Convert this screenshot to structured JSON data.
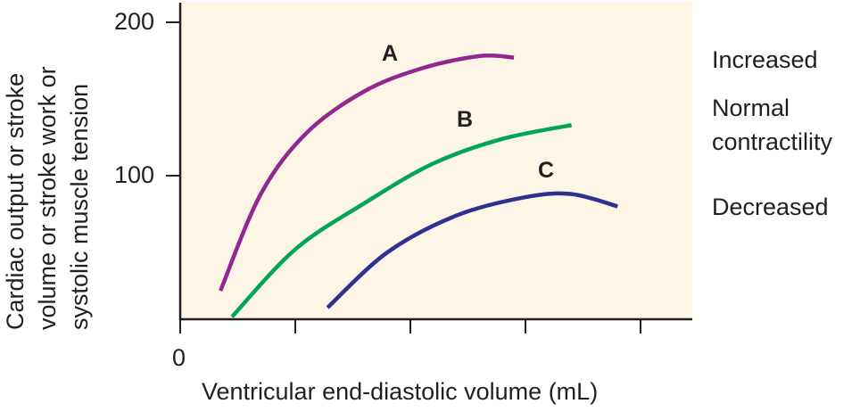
{
  "chart_data": {
    "type": "line",
    "title": "",
    "xlabel": "Ventricular end-diastolic volume (mL)",
    "ylabel": "Cardiac output or stroke volume or stroke work or systolic muscle tension",
    "ylabel_lines": [
      "Cardiac output or stroke",
      "volume or stroke work or",
      "systolic muscle tension"
    ],
    "x_ticks": [
      "0",
      "",
      "",
      "",
      ""
    ],
    "x_tick_count": 5,
    "y_ticks": [
      "100",
      "200"
    ],
    "ylim": [
      6,
      210
    ],
    "xlim": [
      0,
      4.4
    ],
    "grid": false,
    "background": "#fdf5e6",
    "series": [
      {
        "name": "A",
        "label": "Increased",
        "color": "#92278f",
        "x": [
          0.35,
          0.7,
          1.1,
          1.6,
          2.1,
          2.6,
          2.9
        ],
        "y": [
          25,
          88,
          128,
          155,
          170,
          178,
          177
        ]
      },
      {
        "name": "B",
        "label": "Normal contractility",
        "color": "#00a651",
        "x": [
          0.45,
          1.0,
          1.6,
          2.2,
          2.8,
          3.4
        ],
        "y": [
          8,
          52,
          82,
          108,
          124,
          133
        ]
      },
      {
        "name": "C",
        "label": "Decreased",
        "color": "#2e3192",
        "x": [
          1.28,
          1.8,
          2.4,
          3.0,
          3.4,
          3.8
        ],
        "y": [
          14,
          50,
          74,
          86,
          88,
          80
        ]
      }
    ]
  },
  "labels": {
    "curve_a": "A",
    "curve_b": "B",
    "curve_c": "C",
    "increased": "Increased",
    "normal_line1": "Normal",
    "normal_line2": "contractility",
    "decreased": "Decreased",
    "tick_200": "200",
    "tick_100": "100",
    "tick_0": "0",
    "xlabel": "Ventricular end-diastolic volume (mL)",
    "ylabel_1": "Cardiac output or stroke",
    "ylabel_2": "volume or stroke work or",
    "ylabel_3": "systolic muscle tension"
  }
}
